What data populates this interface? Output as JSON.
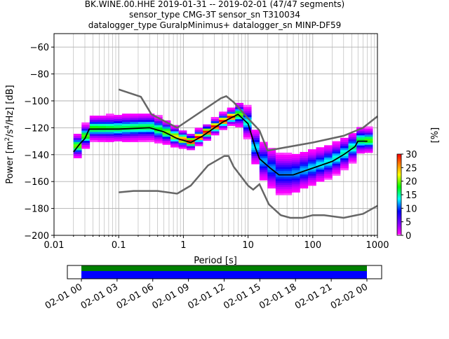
{
  "chart_data": {
    "type": "heatmap",
    "title_lines": [
      "BK.WINE.00.HHE   2019-01-31 -- 2019-02-01  (47/47 segments)",
      "sensor_type CMG-3T sensor_sn T310034",
      "datalogger_type GuralpMinimus+ datalogger_sn MINP-DF59"
    ],
    "xlabel": "Period [s]",
    "ylabel": "Power [m²/s⁴/Hz] [dB]",
    "xscale": "log",
    "xlim": [
      0.01,
      1000
    ],
    "ylim": [
      -200,
      -50
    ],
    "xticks": [
      {
        "v": 0.01,
        "label": "0.01"
      },
      {
        "v": 0.1,
        "label": "0.1"
      },
      {
        "v": 1,
        "label": "1"
      },
      {
        "v": 10,
        "label": "10"
      },
      {
        "v": 100,
        "label": "100"
      },
      {
        "v": 1000,
        "label": "1000"
      }
    ],
    "yticks": [
      {
        "v": -60,
        "label": "−60"
      },
      {
        "v": -80,
        "label": "−80"
      },
      {
        "v": -100,
        "label": "−100"
      },
      {
        "v": -120,
        "label": "−120"
      },
      {
        "v": -140,
        "label": "−140"
      },
      {
        "v": -160,
        "label": "−160"
      },
      {
        "v": -180,
        "label": "−180"
      },
      {
        "v": -200,
        "label": "−200"
      }
    ],
    "grid": true,
    "colorbar": {
      "label": "[%]",
      "range": [
        0,
        30
      ],
      "ticks": [
        "0",
        "5",
        "10",
        "15",
        "20",
        "25",
        "30"
      ]
    },
    "histogram_period_range": [
      0.02,
      700
    ],
    "mean_curve": [
      [
        0.02,
        -138
      ],
      [
        0.025,
        -132
      ],
      [
        0.03,
        -128
      ],
      [
        0.035,
        -121
      ],
      [
        0.1,
        -121
      ],
      [
        0.3,
        -120
      ],
      [
        0.5,
        -123
      ],
      [
        0.8,
        -128
      ],
      [
        1.3,
        -131
      ],
      [
        2,
        -126
      ],
      [
        4,
        -116
      ],
      [
        7,
        -110
      ],
      [
        10,
        -117
      ],
      [
        13,
        -135
      ],
      [
        15,
        -143
      ],
      [
        22,
        -150
      ],
      [
        30,
        -155
      ],
      [
        50,
        -155
      ],
      [
        100,
        -150
      ],
      [
        200,
        -145
      ],
      [
        300,
        -140
      ],
      [
        450,
        -134
      ],
      [
        500,
        -130
      ],
      [
        700,
        -130
      ]
    ],
    "spread_db": [
      [
        0.02,
        6
      ],
      [
        0.1,
        7
      ],
      [
        0.3,
        7
      ],
      [
        1,
        4
      ],
      [
        5,
        4
      ],
      [
        8,
        8
      ],
      [
        15,
        10
      ],
      [
        30,
        11
      ],
      [
        100,
        9
      ],
      [
        300,
        8
      ],
      [
        700,
        6
      ]
    ],
    "nhnm": [
      [
        0.1,
        -91.5
      ],
      [
        0.22,
        -97
      ],
      [
        0.32,
        -110
      ],
      [
        0.8,
        -120
      ],
      [
        3.8,
        -98
      ],
      [
        4.6,
        -96.5
      ],
      [
        6,
        -101
      ],
      [
        10,
        -113
      ],
      [
        15,
        -122
      ],
      [
        20,
        -137
      ],
      [
        100,
        -131
      ],
      [
        300,
        -126
      ],
      [
        600,
        -120
      ],
      [
        1000,
        -111.5
      ]
    ],
    "nlnm": [
      [
        0.1,
        -168
      ],
      [
        0.17,
        -167
      ],
      [
        0.4,
        -167
      ],
      [
        0.8,
        -169
      ],
      [
        1.3,
        -163
      ],
      [
        2.4,
        -148
      ],
      [
        4.3,
        -141
      ],
      [
        5,
        -141
      ],
      [
        6,
        -149
      ],
      [
        10,
        -163
      ],
      [
        12,
        -166
      ],
      [
        15,
        -162
      ],
      [
        21,
        -177
      ],
      [
        32,
        -185
      ],
      [
        45,
        -187
      ],
      [
        70,
        -187
      ],
      [
        100,
        -185
      ],
      [
        150,
        -185
      ],
      [
        300,
        -187
      ],
      [
        600,
        -184
      ],
      [
        1000,
        -178
      ]
    ],
    "coverage": {
      "tick_labels": [
        "02-01 00",
        "02-01 03",
        "02-01 06",
        "02-01 09",
        "02-01 12",
        "02-01 15",
        "02-01 18",
        "02-01 21",
        "02-02 00"
      ],
      "data_color": "#0000ff",
      "processed_color": "#008000",
      "covered_fraction": [
        0,
        1
      ]
    }
  }
}
